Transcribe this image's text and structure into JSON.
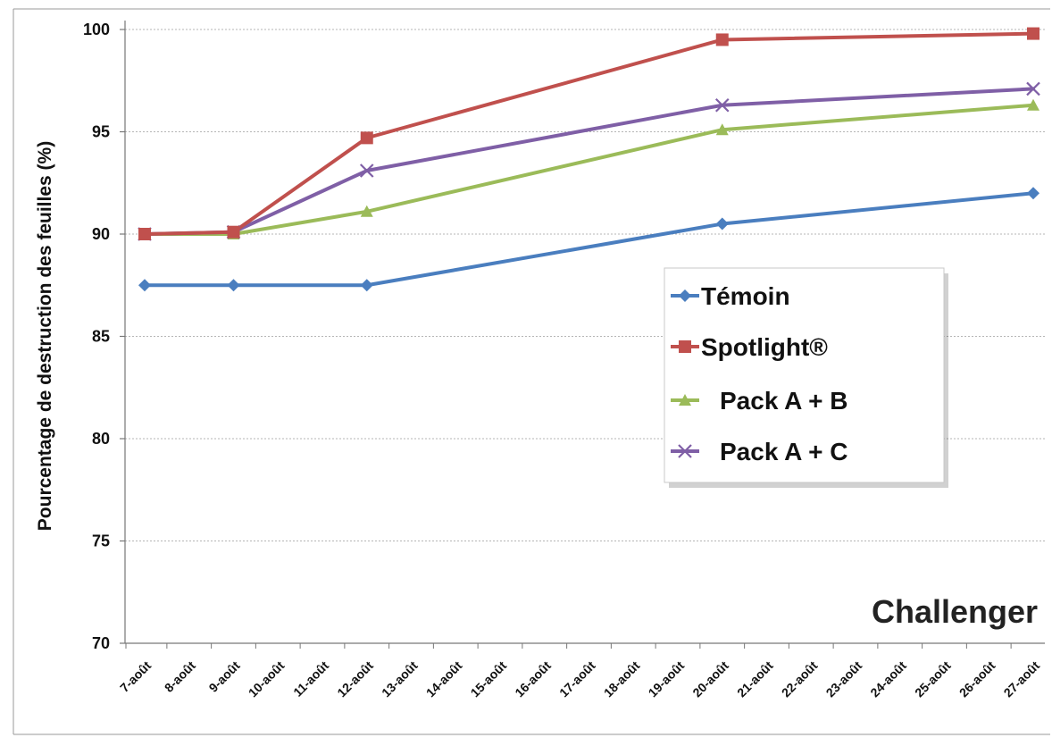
{
  "chart_data": {
    "type": "line",
    "title": "",
    "xlabel": "",
    "ylabel": "Pourcentage de destruction des feuilles (%)",
    "annotation": "Challenger",
    "categories": [
      "7-août",
      "8-août",
      "9-août",
      "10-août",
      "11-août",
      "12-août",
      "13-août",
      "14-août",
      "15-août",
      "16-août",
      "17-août",
      "18-août",
      "19-août",
      "20-août",
      "21-août",
      "22-août",
      "23-août",
      "24-août",
      "25-août",
      "26-août",
      "27-août"
    ],
    "ylim": [
      70,
      100
    ],
    "yticks": [
      70,
      75,
      80,
      85,
      90,
      95,
      100
    ],
    "grid": true,
    "legend_position": "right",
    "series": [
      {
        "name": "Témoin",
        "color": "#4a7ebf",
        "marker": "diamond",
        "points": [
          {
            "x": "7-août",
            "y": 87.5
          },
          {
            "x": "9-août",
            "y": 87.5
          },
          {
            "x": "12-août",
            "y": 87.5
          },
          {
            "x": "20-août",
            "y": 90.5
          },
          {
            "x": "27-août",
            "y": 92.0
          }
        ]
      },
      {
        "name": "Spotlight®",
        "color": "#c0504d",
        "marker": "square",
        "points": [
          {
            "x": "7-août",
            "y": 90.0
          },
          {
            "x": "9-août",
            "y": 90.1
          },
          {
            "x": "12-août",
            "y": 94.7
          },
          {
            "x": "20-août",
            "y": 99.5
          },
          {
            "x": "27-août",
            "y": 99.8
          }
        ]
      },
      {
        "name": "Pack A + B",
        "color": "#9bbb59",
        "marker": "triangle",
        "points": [
          {
            "x": "7-août",
            "y": 90.0
          },
          {
            "x": "9-août",
            "y": 90.0
          },
          {
            "x": "12-août",
            "y": 91.1
          },
          {
            "x": "20-août",
            "y": 95.1
          },
          {
            "x": "27-août",
            "y": 96.3
          }
        ]
      },
      {
        "name": "Pack A + C",
        "color": "#7f5fa6",
        "marker": "x",
        "points": [
          {
            "x": "7-août",
            "y": 90.0
          },
          {
            "x": "9-août",
            "y": 90.1
          },
          {
            "x": "12-août",
            "y": 93.1
          },
          {
            "x": "20-août",
            "y": 96.3
          },
          {
            "x": "27-août",
            "y": 97.1
          }
        ]
      }
    ]
  }
}
